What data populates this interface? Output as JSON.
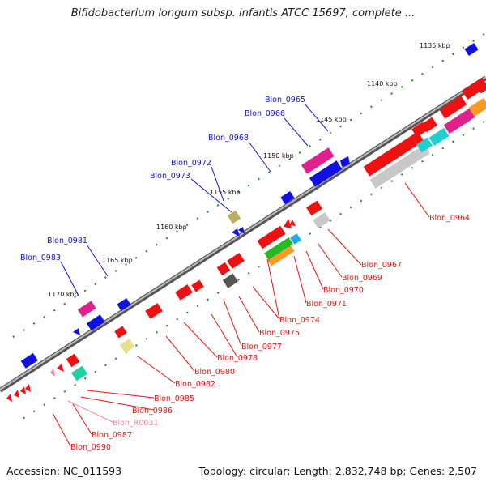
{
  "title": "Bifidobacterium longum subsp. infantis ATCC 15697, complete ...",
  "accession": "Accession: NC_011593",
  "summary": "Topology: circular; Length: 2,832,748 bp; Genes: 2,507",
  "kbp_labels": [
    "1135 kbp",
    "1140 kbp",
    "1145 kbp",
    "1150 kbp",
    "1155 kbp",
    "1160 kbp",
    "1165 kbp",
    "1170 kbp"
  ],
  "genes_blue": [
    "Blon_0965",
    "Blon_0966",
    "Blon_0968",
    "Blon_0972",
    "Blon_0973",
    "Blon_0981",
    "Blon_0983"
  ],
  "genes_red": [
    "Blon_0964",
    "Blon_0967",
    "Blon_0969",
    "Blon_0970",
    "Blon_0971",
    "Blon_0974",
    "Blon_0975",
    "Blon_0977",
    "Blon_0978",
    "Blon_0980",
    "Blon_0982",
    "Blon_0985",
    "Blon_0986",
    "Blon_R0031",
    "Blon_0987",
    "Blon_0990"
  ],
  "colors": {
    "backbone": "#8a8a8a",
    "forward_gene": "#1010e0",
    "reverse_gene": "#ee1111",
    "rna_gene": "#ee88aa",
    "tick": "#1a8a1a"
  }
}
